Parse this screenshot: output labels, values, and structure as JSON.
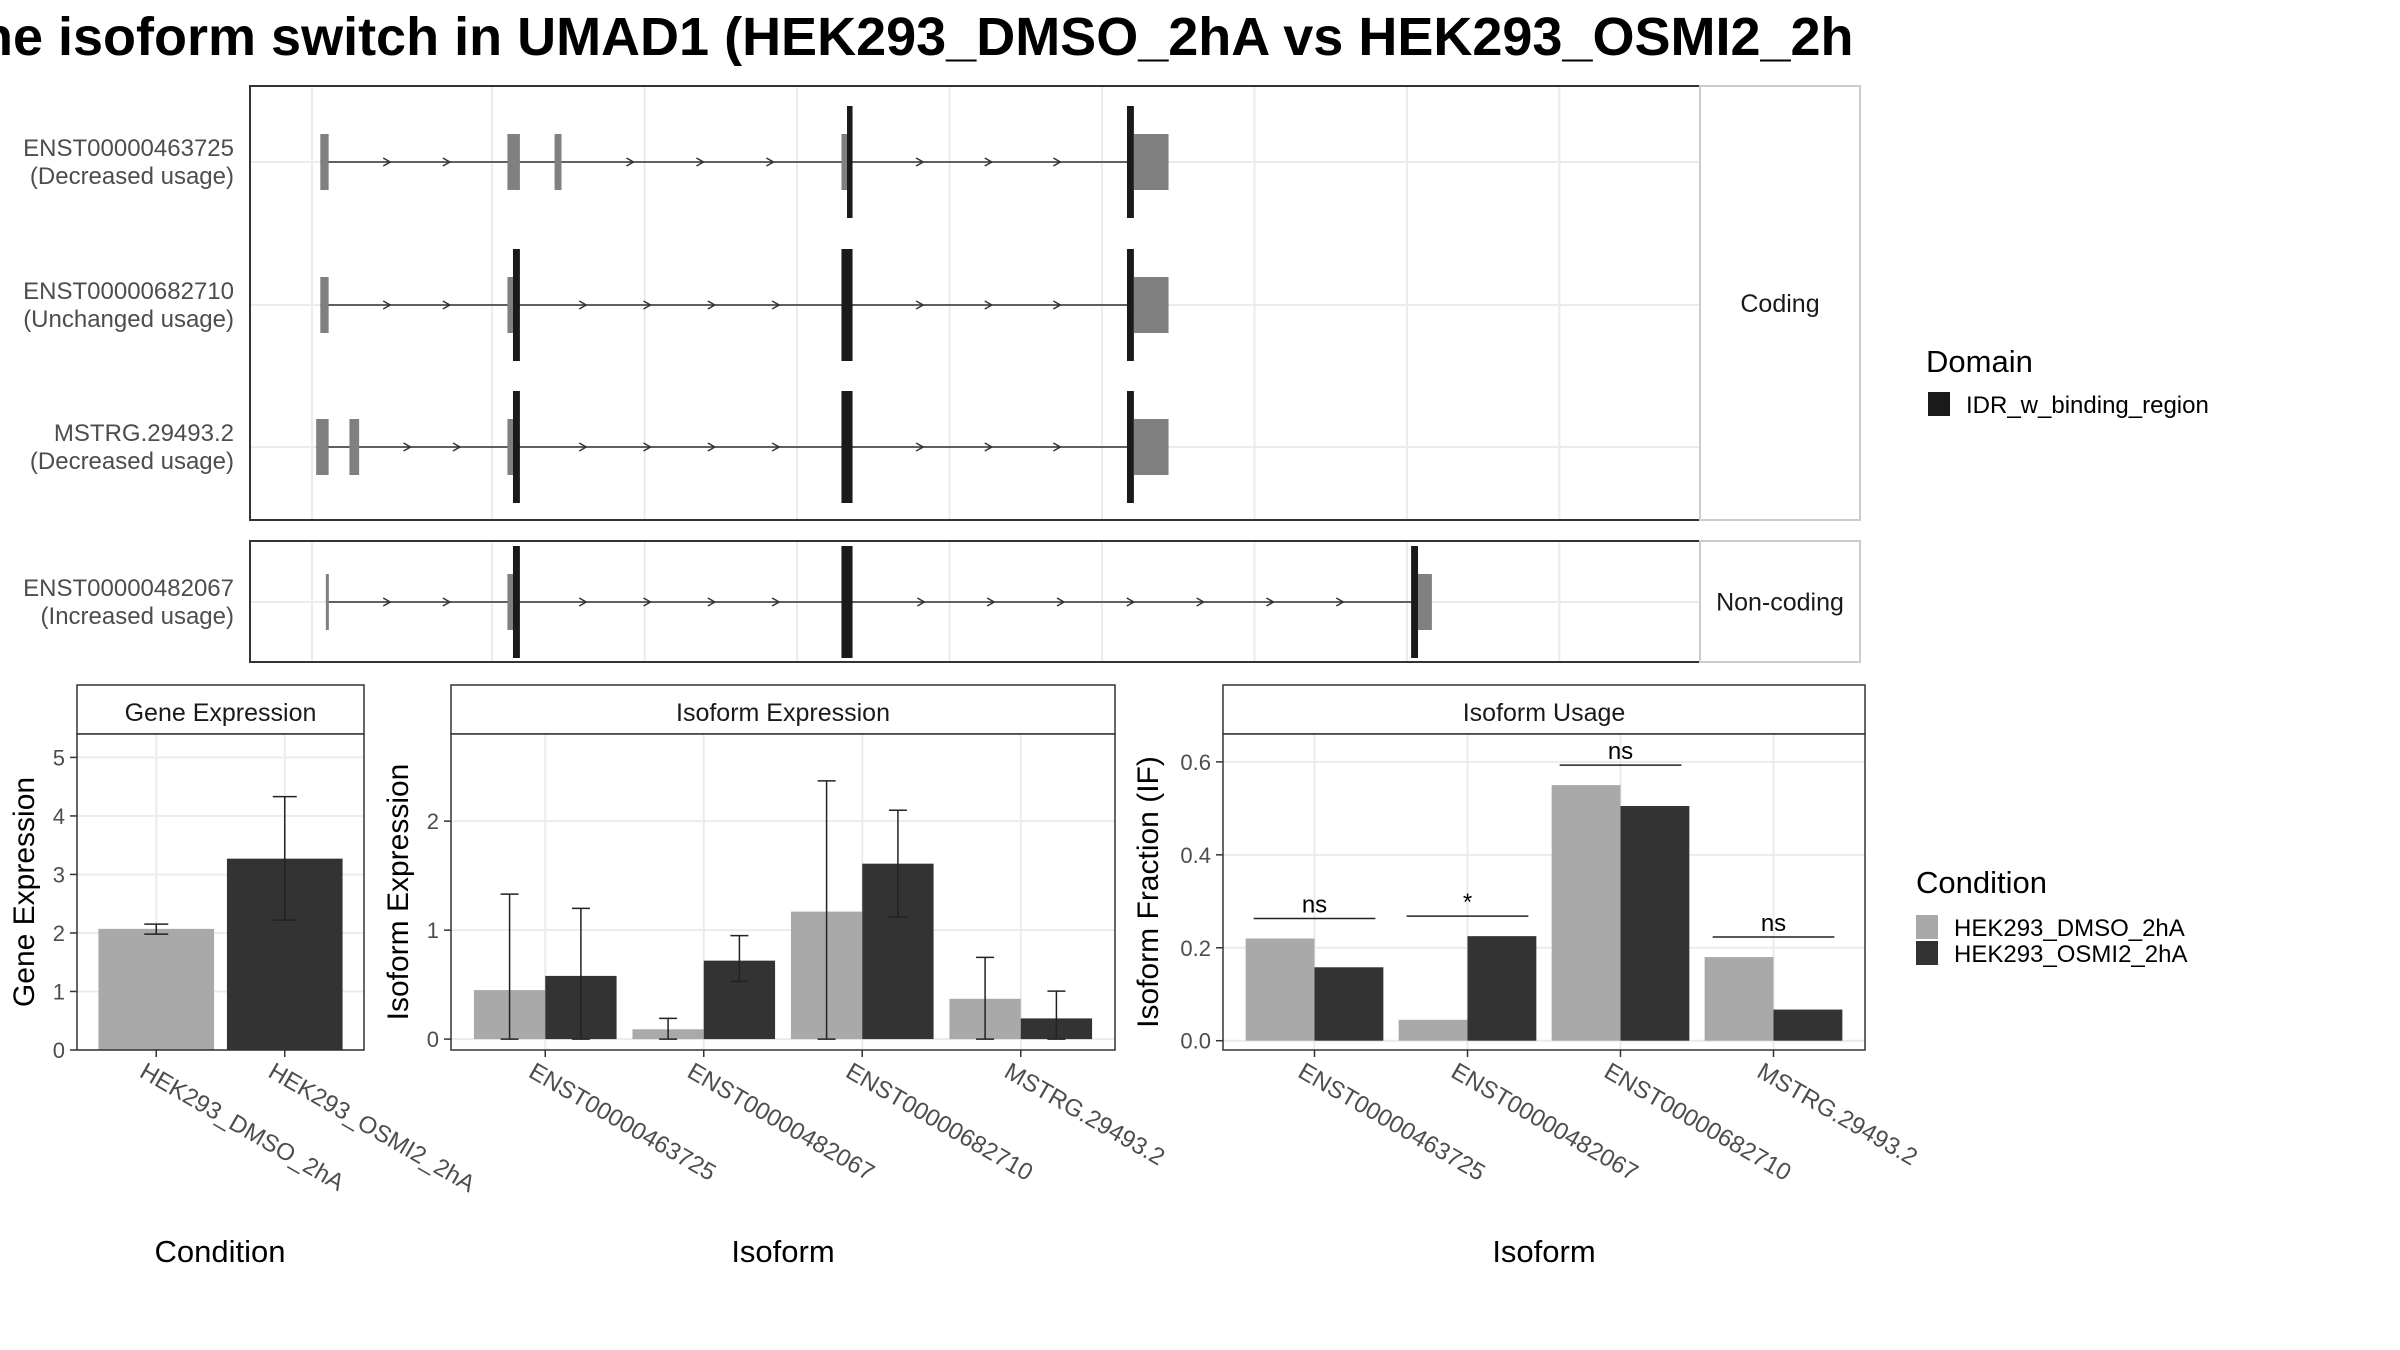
{
  "title": "ne isoform switch in UMAD1 (HEK293_DMSO_2hA vs HEK293_OSMI2_2h",
  "colors": {
    "dmso": "#a9a9a9",
    "osmi": "#333333",
    "utr": "#808080",
    "domain": "#1a1a1a",
    "grid": "#ebebeb",
    "strip": "#ffffff",
    "panel_border": "#333333"
  },
  "transcript_panels": [
    {
      "label": "Coding",
      "tracks": [
        {
          "id": "ENST00000463725",
          "usage": "(Decreased usage)"
        },
        {
          "id": "ENST00000682710",
          "usage": "(Unchanged usage)"
        },
        {
          "id": "MSTRG.29493.2",
          "usage": "(Decreased usage)"
        }
      ]
    },
    {
      "label": "Non-coding",
      "tracks": [
        {
          "id": "ENST00000482067",
          "usage": "(Increased usage)"
        }
      ]
    }
  ],
  "legends": {
    "domain": {
      "title": "Domain",
      "items": [
        "IDR_w_binding_region"
      ]
    },
    "condition": {
      "title": "Condition",
      "items": [
        "HEK293_DMSO_2hA",
        "HEK293_OSMI2_2hA"
      ]
    }
  },
  "chart_data": [
    {
      "type": "bar",
      "title": "Gene Expression",
      "xlabel": "Condition",
      "ylabel": "Gene Expression",
      "ylim": [
        0,
        5.4
      ],
      "yticks": [
        "0",
        "1",
        "2",
        "3",
        "4",
        "5"
      ],
      "categories": [
        "HEK293_DMSO_2hA",
        "HEK293_OSMI2_2hA"
      ],
      "values": [
        2.07,
        3.27
      ],
      "errors_low": [
        1.98,
        2.22
      ],
      "errors_high": [
        2.15,
        4.33
      ]
    },
    {
      "type": "bar",
      "title": "Isoform Expression",
      "xlabel": "Isoform",
      "ylabel": "Isoform Expression",
      "ylim": [
        -0.1,
        2.8
      ],
      "yticks": [
        "0",
        "1",
        "2"
      ],
      "categories": [
        "ENST00000463725",
        "ENST00000482067",
        "ENST00000682710",
        "MSTRG.29493.2"
      ],
      "series": [
        {
          "name": "HEK293_DMSO_2hA",
          "values": [
            0.45,
            0.09,
            1.17,
            0.37
          ],
          "low": [
            0.0,
            0.0,
            0.0,
            0.0
          ],
          "high": [
            1.33,
            0.19,
            2.37,
            0.75
          ]
        },
        {
          "name": "HEK293_OSMI2_2hA",
          "values": [
            0.58,
            0.72,
            1.61,
            0.19
          ],
          "low": [
            0.0,
            0.53,
            1.12,
            0.0
          ],
          "high": [
            1.2,
            0.95,
            2.1,
            0.44
          ]
        }
      ]
    },
    {
      "type": "bar",
      "title": "Isoform Usage",
      "xlabel": "Isoform",
      "ylabel": "Isoform Fraction (IF)",
      "ylim": [
        -0.02,
        0.66
      ],
      "yticks": [
        "0.0",
        "0.2",
        "0.4",
        "0.6"
      ],
      "categories": [
        "ENST00000463725",
        "ENST00000482067",
        "ENST00000682710",
        "MSTRG.29493.2"
      ],
      "series": [
        {
          "name": "HEK293_DMSO_2hA",
          "values": [
            0.22,
            0.045,
            0.55,
            0.18
          ]
        },
        {
          "name": "HEK293_OSMI2_2hA",
          "values": [
            0.158,
            0.225,
            0.505,
            0.067
          ]
        }
      ],
      "significance": [
        "ns",
        "*",
        "ns",
        "ns"
      ]
    }
  ]
}
